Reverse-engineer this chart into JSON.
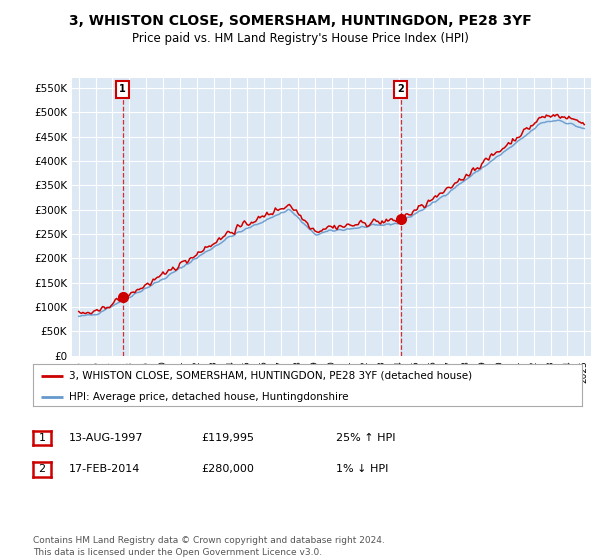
{
  "title": "3, WHISTON CLOSE, SOMERSHAM, HUNTINGDON, PE28 3YF",
  "subtitle": "Price paid vs. HM Land Registry's House Price Index (HPI)",
  "ylim": [
    0,
    570000
  ],
  "yticks": [
    0,
    50000,
    100000,
    150000,
    200000,
    250000,
    300000,
    350000,
    400000,
    450000,
    500000,
    550000
  ],
  "ytick_labels": [
    "£0",
    "£50K",
    "£100K",
    "£150K",
    "£200K",
    "£250K",
    "£300K",
    "£350K",
    "£400K",
    "£450K",
    "£500K",
    "£550K"
  ],
  "sale1_year": 1997.6,
  "sale1_price": 119995,
  "sale1_date": "13-AUG-1997",
  "sale1_hpi": "25% ↑ HPI",
  "sale2_year": 2014.1,
  "sale2_price": 280000,
  "sale2_date": "17-FEB-2014",
  "sale2_hpi": "1% ↓ HPI",
  "legend_red": "3, WHISTON CLOSE, SOMERSHAM, HUNTINGDON, PE28 3YF (detached house)",
  "legend_blue": "HPI: Average price, detached house, Huntingdonshire",
  "footer": "Contains HM Land Registry data © Crown copyright and database right 2024.\nThis data is licensed under the Open Government Licence v3.0.",
  "bg_color": "#dce9f5",
  "red_color": "#cc0000",
  "blue_color": "#6699cc",
  "xmin": 1995,
  "xmax": 2025
}
